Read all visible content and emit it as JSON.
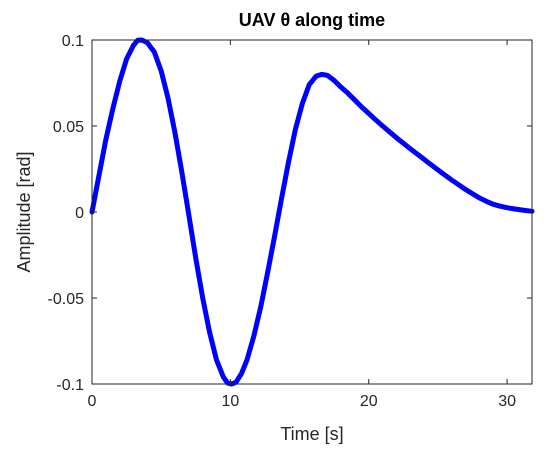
{
  "chart_data": {
    "type": "line",
    "title": "UAV  θ  along time",
    "xlabel": "Time [s]",
    "ylabel": "Amplitude [rad]",
    "xlim": [
      0,
      31.8
    ],
    "ylim": [
      -0.1,
      0.1
    ],
    "xticks": [
      0,
      10,
      20,
      30
    ],
    "xtick_labels": [
      "0",
      "10",
      "20",
      "30"
    ],
    "yticks": [
      0.1,
      0.05,
      0,
      -0.05,
      -0.1
    ],
    "ytick_labels": [
      "0.1",
      "0.05",
      "0",
      "-0.05",
      "-0.1"
    ],
    "grid": false,
    "box": true,
    "series": [
      {
        "color": "#0000ff",
        "x": [
          0,
          0.5,
          1,
          1.5,
          2,
          2.5,
          3,
          3.3,
          3.6,
          4,
          4.5,
          5,
          5.5,
          6,
          6.5,
          7,
          7.5,
          8,
          8.5,
          9,
          9.5,
          9.8,
          10.1,
          10.4,
          10.8,
          11.2,
          11.7,
          12.2,
          12.7,
          13.2,
          13.7,
          14.2,
          14.7,
          15.2,
          15.7,
          16.2,
          16.6,
          17,
          17.5,
          18,
          18.5,
          19,
          19.5,
          20,
          20.5,
          21,
          21.5,
          22,
          22.5,
          23,
          23.5,
          24,
          24.5,
          25,
          25.5,
          26,
          26.5,
          27,
          27.5,
          28,
          28.5,
          29,
          29.5,
          30,
          30.5,
          31,
          31.8
        ],
        "y": [
          0,
          0.021,
          0.042,
          0.06,
          0.076,
          0.089,
          0.097,
          0.0998,
          0.1,
          0.0985,
          0.093,
          0.082,
          0.066,
          0.046,
          0.023,
          -0.002,
          -0.027,
          -0.05,
          -0.07,
          -0.086,
          -0.096,
          -0.0995,
          -0.1,
          -0.099,
          -0.094,
          -0.086,
          -0.072,
          -0.055,
          -0.035,
          -0.014,
          0.008,
          0.029,
          0.048,
          0.063,
          0.074,
          0.079,
          0.08,
          0.0795,
          0.0765,
          0.0725,
          0.069,
          0.065,
          0.061,
          0.0573,
          0.0536,
          0.05,
          0.0466,
          0.0432,
          0.04,
          0.0368,
          0.0337,
          0.0306,
          0.0275,
          0.0245,
          0.0215,
          0.0186,
          0.0158,
          0.0131,
          0.0106,
          0.0082,
          0.0062,
          0.0045,
          0.0034,
          0.0025,
          0.0018,
          0.0012,
          0.0004
        ]
      }
    ]
  }
}
